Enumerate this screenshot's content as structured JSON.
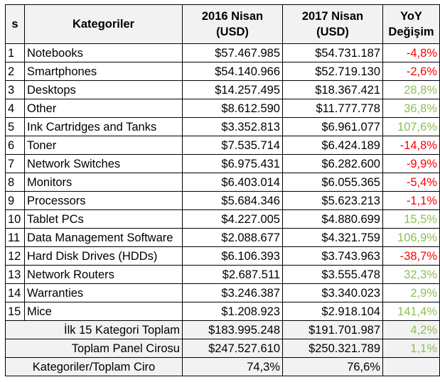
{
  "columns": {
    "no": "s",
    "category": "Kategoriler",
    "y2016_line1": "2016 Nisan",
    "y2016_line2": "(USD)",
    "y2017_line1": "2017 Nisan",
    "y2017_line2": "(USD)",
    "yoy_line1": "YoY",
    "yoy_line2": "Değişim"
  },
  "rows": [
    {
      "no": "1",
      "name": "Notebooks",
      "v2016": "$57.467.985",
      "v2017": "$54.731.187",
      "yoy": "-4,8%",
      "trend": "neg"
    },
    {
      "no": "2",
      "name": "Smartphones",
      "v2016": "$54.140.966",
      "v2017": "$52.719.130",
      "yoy": "-2,6%",
      "trend": "neg"
    },
    {
      "no": "3",
      "name": "Desktops",
      "v2016": "$14.257.495",
      "v2017": "$18.367.421",
      "yoy": "28,8%",
      "trend": "pos"
    },
    {
      "no": "4",
      "name": "Other",
      "v2016": "$8.612.590",
      "v2017": "$11.777.778",
      "yoy": "36,8%",
      "trend": "pos"
    },
    {
      "no": "5",
      "name": "Ink Cartridges and Tanks",
      "v2016": "$3.352.813",
      "v2017": "$6.961.077",
      "yoy": "107,6%",
      "trend": "pos"
    },
    {
      "no": "6",
      "name": "Toner",
      "v2016": "$7.535.714",
      "v2017": "$6.424.189",
      "yoy": "-14,8%",
      "trend": "neg"
    },
    {
      "no": "7",
      "name": "Network Switches",
      "v2016": "$6.975.431",
      "v2017": "$6.282.600",
      "yoy": "-9,9%",
      "trend": "neg"
    },
    {
      "no": "8",
      "name": "Monitors",
      "v2016": "$6.403.014",
      "v2017": "$6.055.365",
      "yoy": "-5,4%",
      "trend": "neg"
    },
    {
      "no": "9",
      "name": "Processors",
      "v2016": "$5.684.346",
      "v2017": "$5.623.213",
      "yoy": "-1,1%",
      "trend": "neg"
    },
    {
      "no": "10",
      "name": "Tablet PCs",
      "v2016": "$4.227.005",
      "v2017": "$4.880.699",
      "yoy": "15,5%",
      "trend": "pos"
    },
    {
      "no": "11",
      "name": "Data Management Software",
      "v2016": "$2.088.677",
      "v2017": "$4.321.759",
      "yoy": "106,9%",
      "trend": "pos"
    },
    {
      "no": "12",
      "name": "Hard Disk Drives (HDDs)",
      "v2016": "$6.106.393",
      "v2017": "$3.743.963",
      "yoy": "-38,7%",
      "trend": "neg"
    },
    {
      "no": "13",
      "name": "Network Routers",
      "v2016": "$2.687.511",
      "v2017": "$3.555.478",
      "yoy": "32,3%",
      "trend": "pos"
    },
    {
      "no": "14",
      "name": "Warranties",
      "v2016": "$3.246.387",
      "v2017": "$3.340.023",
      "yoy": "2,9%",
      "trend": "pos"
    },
    {
      "no": "15",
      "name": "Mice",
      "v2016": "$1.208.923",
      "v2017": "$2.918.104",
      "yoy": "141,4%",
      "trend": "pos"
    }
  ],
  "totals": [
    {
      "label": "İlk 15 Kategori Toplam",
      "v2016": "$183.995.248",
      "v2017": "$191.701.987",
      "yoy": "4,2%",
      "trend": "pos"
    },
    {
      "label": "Toplam Panel Cirosu",
      "v2016": "$247.527.610",
      "v2017": "$250.321.789",
      "yoy": "1,1%",
      "trend": "pos"
    },
    {
      "label": "Kategoriler/Toplam Ciro",
      "v2016": "74,3%",
      "v2017": "76,6%",
      "yoy": "",
      "trend": ""
    }
  ],
  "colors": {
    "positive": "#8cc152",
    "negative": "#ff0000",
    "total_bg": "#f2f2f2"
  }
}
